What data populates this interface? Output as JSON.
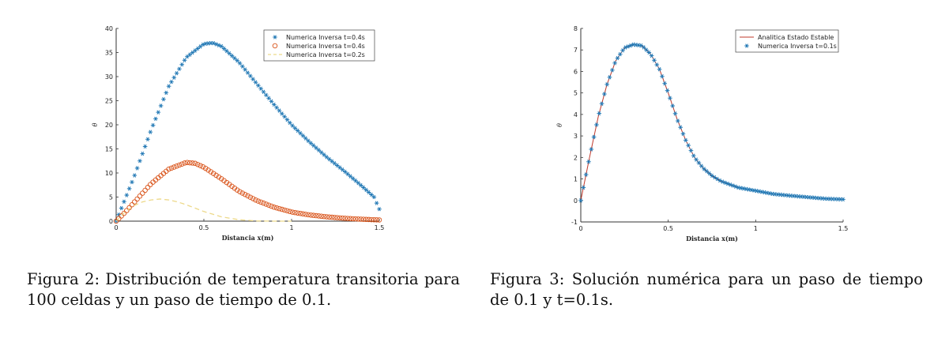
{
  "chart_data": [
    {
      "type": "scatter",
      "xlabel": "Distancia x(m)",
      "ylabel": "θ",
      "xlim": [
        0,
        1.5
      ],
      "ylim": [
        0,
        40
      ],
      "xticks": [
        "0",
        "0.5",
        "1",
        "1.5"
      ],
      "yticks": [
        "0",
        "5",
        "10",
        "15",
        "20",
        "25",
        "30",
        "35",
        "40"
      ],
      "legend_position": "top-right",
      "grid": false,
      "series": [
        {
          "name": "Numerica Inversa t=0.4s",
          "marker": "asterisk",
          "color": "#1f77b4",
          "x": [
            0,
            0.1,
            0.2,
            0.3,
            0.4,
            0.5,
            0.55,
            0.6,
            0.7,
            0.8,
            0.9,
            1.0,
            1.1,
            1.2,
            1.3,
            1.4,
            1.47,
            1.5
          ],
          "y": [
            0,
            9,
            19,
            28,
            34,
            36.8,
            37,
            36.3,
            33,
            28.6,
            24.2,
            20,
            16.5,
            13.3,
            10.4,
            7.3,
            5,
            2.5
          ]
        },
        {
          "name": "Numerica Inversa t=0.4s",
          "marker": "circle",
          "color": "#d95319",
          "x": [
            0,
            0.05,
            0.1,
            0.2,
            0.3,
            0.4,
            0.45,
            0.5,
            0.6,
            0.7,
            0.8,
            0.9,
            1.0,
            1.1,
            1.2,
            1.3,
            1.4,
            1.5
          ],
          "y": [
            0,
            1.8,
            3.8,
            7.8,
            10.8,
            12.2,
            12,
            11.2,
            8.8,
            6.2,
            4.3,
            2.9,
            1.9,
            1.3,
            0.9,
            0.6,
            0.4,
            0.25
          ]
        },
        {
          "name": "Numerica Inversa t=0.2s",
          "line": "dashed",
          "color": "#edd98a",
          "x": [
            0,
            0.05,
            0.1,
            0.15,
            0.2,
            0.25,
            0.3,
            0.35,
            0.4,
            0.5,
            0.6,
            0.7,
            0.8,
            0.9,
            1.0
          ],
          "y": [
            0,
            1.9,
            3.2,
            4.0,
            4.4,
            4.6,
            4.4,
            4.0,
            3.4,
            2.0,
            0.9,
            0.3,
            0.05,
            0,
            0
          ]
        }
      ]
    },
    {
      "type": "line",
      "xlabel": "Distancia x(m)",
      "ylabel": "θ",
      "xlim": [
        0,
        1.5
      ],
      "ylim": [
        -1,
        8
      ],
      "xticks": [
        "0",
        "0.5",
        "1",
        "1.5"
      ],
      "yticks": [
        "-1",
        "0",
        "1",
        "2",
        "3",
        "4",
        "5",
        "6",
        "7",
        "8"
      ],
      "legend_position": "top-right",
      "grid": false,
      "series": [
        {
          "name": "Analitica Estado Estable",
          "line": "solid",
          "color": "#c0392b",
          "x": [
            0,
            0.05,
            0.1,
            0.15,
            0.2,
            0.25,
            0.3,
            0.35,
            0.4,
            0.45,
            0.5,
            0.55,
            0.6,
            0.65,
            0.7,
            0.75,
            0.8,
            0.9,
            1.0,
            1.1,
            1.2,
            1.3,
            1.4,
            1.5
          ],
          "y": [
            0,
            2.0,
            3.9,
            5.4,
            6.5,
            7.1,
            7.25,
            7.2,
            6.8,
            6.1,
            5.0,
            3.8,
            2.8,
            2.0,
            1.5,
            1.15,
            0.9,
            0.6,
            0.45,
            0.3,
            0.22,
            0.15,
            0.08,
            0.05
          ]
        },
        {
          "name": "Numerica Inversa t=0.1s",
          "marker": "asterisk",
          "color": "#1f77b4",
          "x": [
            0,
            0.05,
            0.1,
            0.15,
            0.2,
            0.25,
            0.3,
            0.35,
            0.4,
            0.45,
            0.5,
            0.55,
            0.6,
            0.65,
            0.7,
            0.75,
            0.8,
            0.9,
            1.0,
            1.1,
            1.2,
            1.3,
            1.4,
            1.5
          ],
          "y": [
            0,
            2.0,
            3.9,
            5.4,
            6.5,
            7.1,
            7.25,
            7.2,
            6.8,
            6.1,
            5.0,
            3.8,
            2.8,
            2.0,
            1.5,
            1.15,
            0.9,
            0.6,
            0.45,
            0.3,
            0.22,
            0.15,
            0.08,
            0.05
          ]
        }
      ]
    }
  ],
  "captions": {
    "left": "Figura 2: Distribución de temperatura transitoria para 100 celdas y un paso de tiempo de 0.1.",
    "right": "Figura 3: Solución numérica para un paso de tiempo de 0.1 y t=0.1s."
  }
}
